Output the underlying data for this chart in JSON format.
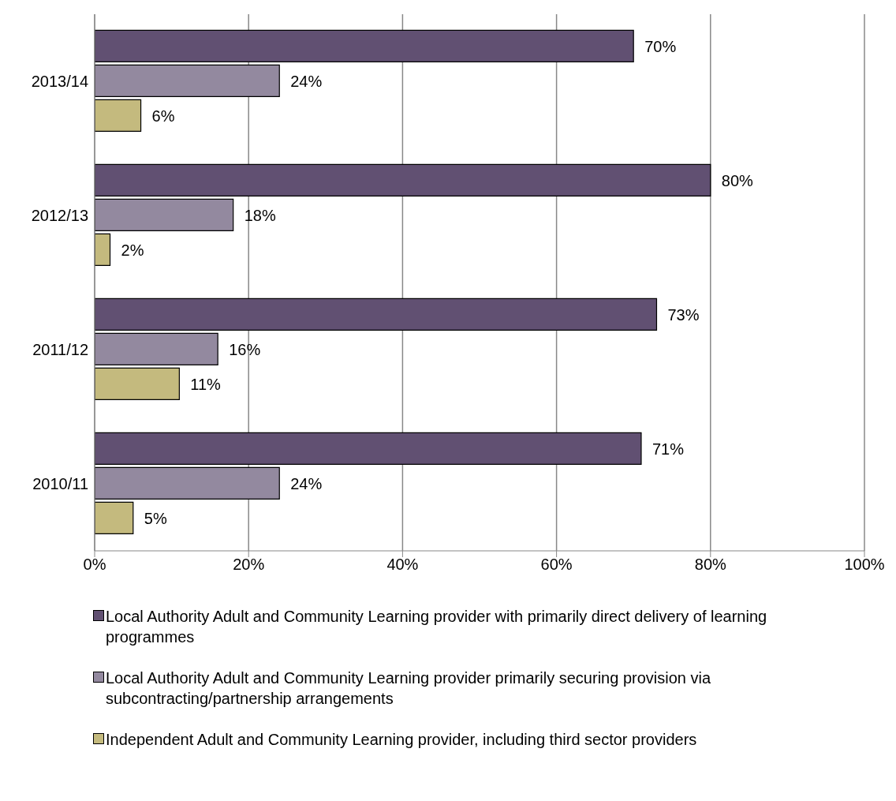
{
  "chart_data": {
    "type": "bar",
    "orientation": "horizontal",
    "categories": [
      "2013/14",
      "2012/13",
      "2011/12",
      "2010/11"
    ],
    "series": [
      {
        "name": "Local Authority Adult and Community Learning  provider with primarily direct delivery of learning programmes",
        "color": "#615072",
        "values": [
          70,
          80,
          73,
          71
        ],
        "value_labels": [
          "70%",
          "80%",
          "73%",
          "71%"
        ]
      },
      {
        "name": "Local Authority Adult and Community Learning  provider primarily securing provision via subcontracting/partnership arrangements",
        "color": "#93899f",
        "values": [
          24,
          18,
          16,
          24
        ],
        "value_labels": [
          "24%",
          "18%",
          "16%",
          "24%"
        ]
      },
      {
        "name": "Independent Adult and Community Learning  provider, including third sector providers",
        "color": "#c4ba7e",
        "values": [
          6,
          2,
          11,
          5
        ],
        "value_labels": [
          "6%",
          "2%",
          "11%",
          "5%"
        ]
      }
    ],
    "xlim": [
      0,
      100
    ],
    "xticks": [
      {
        "value": 0,
        "label": "0%"
      },
      {
        "value": 20,
        "label": "20%"
      },
      {
        "value": 40,
        "label": "40%"
      },
      {
        "value": 60,
        "label": "60%"
      },
      {
        "value": 80,
        "label": "80%"
      },
      {
        "value": 100,
        "label": "100%"
      }
    ],
    "grid": "x",
    "legend": "bottom"
  }
}
